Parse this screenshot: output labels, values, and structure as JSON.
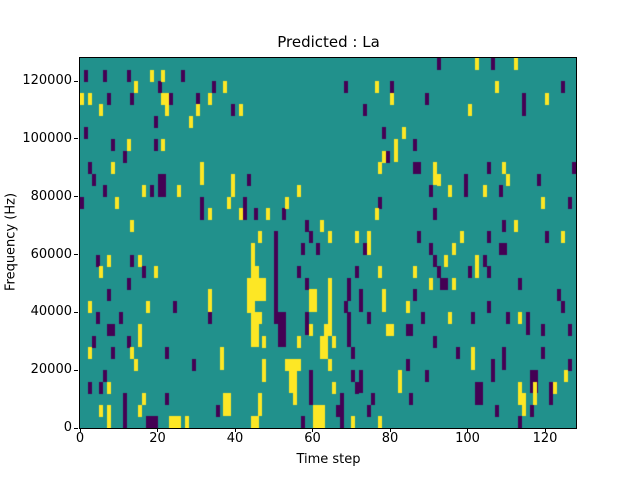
{
  "chart_data": {
    "type": "heatmap",
    "title": "Predicted : La",
    "xlabel": "Time step",
    "ylabel": "Frequency (Hz)",
    "x_range": [
      0,
      128
    ],
    "y_range": [
      0,
      128000
    ],
    "x_ticks": [
      0,
      20,
      40,
      60,
      80,
      100,
      120
    ],
    "y_ticks": [
      0,
      20000,
      40000,
      60000,
      80000,
      100000,
      120000
    ],
    "grid": {
      "cols": 128,
      "rows": 32
    },
    "legend": "none",
    "colors": {
      "mid": "#21918c",
      "low": "#440154",
      "high": "#fde725",
      "axis": "#000000",
      "figure_bg": "#ffffff"
    },
    "cells_low": [
      [
        92,
        0
      ],
      [
        106,
        0
      ],
      [
        1,
        1
      ],
      [
        6,
        1
      ],
      [
        12,
        1
      ],
      [
        26,
        1
      ],
      [
        20,
        2
      ],
      [
        34,
        2
      ],
      [
        68,
        2
      ],
      [
        80,
        2
      ],
      [
        124,
        2
      ],
      [
        7,
        3
      ],
      [
        13,
        3
      ],
      [
        23,
        3
      ],
      [
        30,
        3
      ],
      [
        89,
        3
      ],
      [
        114,
        3,
        1,
        2
      ],
      [
        39,
        4
      ],
      [
        73,
        4
      ],
      [
        19,
        5
      ],
      [
        1,
        6
      ],
      [
        78,
        6
      ],
      [
        8,
        7
      ],
      [
        19,
        7
      ],
      [
        86,
        7
      ],
      [
        11,
        8
      ],
      [
        79,
        8
      ],
      [
        2,
        9
      ],
      [
        86,
        9,
        2,
        1
      ],
      [
        105,
        9
      ],
      [
        127,
        9
      ],
      [
        3,
        10
      ],
      [
        43,
        10
      ],
      [
        99,
        10,
        1,
        2
      ],
      [
        118,
        10
      ],
      [
        20,
        10,
        2,
        2
      ],
      [
        6,
        11
      ],
      [
        18,
        11
      ],
      [
        90,
        11
      ],
      [
        108,
        11
      ],
      [
        0,
        12
      ],
      [
        31,
        12,
        1,
        2
      ],
      [
        42,
        12,
        1,
        2
      ],
      [
        77,
        12
      ],
      [
        126,
        12
      ],
      [
        45,
        13
      ],
      [
        52,
        13
      ],
      [
        91,
        13
      ],
      [
        58,
        14
      ],
      [
        109,
        14
      ],
      [
        50,
        15
      ],
      [
        59,
        15
      ],
      [
        87,
        15
      ],
      [
        105,
        15
      ],
      [
        120,
        15
      ],
      [
        50,
        16,
        1,
        7
      ],
      [
        57,
        16
      ],
      [
        61,
        16
      ],
      [
        73,
        16
      ],
      [
        90,
        16
      ],
      [
        108,
        16,
        2,
        1
      ],
      [
        4,
        17
      ],
      [
        13,
        17
      ],
      [
        91,
        17
      ],
      [
        104,
        17
      ],
      [
        16,
        18
      ],
      [
        56,
        18
      ],
      [
        71,
        18
      ],
      [
        92,
        18
      ],
      [
        100,
        18
      ],
      [
        105,
        18
      ],
      [
        12,
        19
      ],
      [
        58,
        19
      ],
      [
        69,
        19,
        1,
        2
      ],
      [
        93,
        19
      ],
      [
        94,
        19
      ],
      [
        113,
        19
      ],
      [
        7,
        20
      ],
      [
        72,
        20,
        1,
        2
      ],
      [
        86,
        20
      ],
      [
        123,
        20
      ],
      [
        24,
        21
      ],
      [
        68,
        21
      ],
      [
        105,
        21
      ],
      [
        124,
        21
      ],
      [
        4,
        22
      ],
      [
        10,
        22
      ],
      [
        33,
        22
      ],
      [
        51,
        22,
        2,
        3
      ],
      [
        58,
        22,
        1,
        2
      ],
      [
        69,
        22,
        1,
        3
      ],
      [
        74,
        22
      ],
      [
        88,
        22
      ],
      [
        101,
        22
      ],
      [
        110,
        22
      ],
      [
        115,
        22,
        1,
        2
      ],
      [
        7,
        23,
        2,
        1
      ],
      [
        84,
        23
      ],
      [
        85,
        23
      ],
      [
        119,
        23
      ],
      [
        126,
        23
      ],
      [
        3,
        24
      ],
      [
        12,
        24
      ],
      [
        91,
        24
      ],
      [
        8,
        25
      ],
      [
        22,
        25
      ],
      [
        70,
        25
      ],
      [
        97,
        25
      ],
      [
        109,
        25,
        1,
        2
      ],
      [
        119,
        25
      ],
      [
        29,
        26
      ],
      [
        84,
        26
      ],
      [
        106,
        26,
        1,
        2
      ],
      [
        126,
        26
      ],
      [
        6,
        27
      ],
      [
        59,
        27,
        1,
        3
      ],
      [
        70,
        27
      ],
      [
        72,
        27,
        1,
        2
      ],
      [
        89,
        27
      ],
      [
        116,
        27,
        2,
        2
      ],
      [
        2,
        28
      ],
      [
        5,
        28
      ],
      [
        71,
        28
      ],
      [
        102,
        28,
        2,
        2
      ],
      [
        121,
        28,
        1,
        2
      ],
      [
        11,
        29,
        1,
        2
      ],
      [
        22,
        29
      ],
      [
        67,
        29,
        1,
        2
      ],
      [
        75,
        29
      ],
      [
        85,
        29
      ],
      [
        35,
        30
      ],
      [
        66,
        30,
        2,
        1
      ],
      [
        74,
        30
      ],
      [
        107,
        30
      ],
      [
        116,
        30
      ],
      [
        11,
        31
      ],
      [
        17,
        31,
        3,
        1
      ],
      [
        57,
        31
      ],
      [
        67,
        31
      ],
      [
        113,
        31
      ]
    ],
    "cells_high": [
      [
        102,
        0
      ],
      [
        112,
        0
      ],
      [
        18,
        1
      ],
      [
        21,
        1
      ],
      [
        14,
        2
      ],
      [
        37,
        2
      ],
      [
        76,
        2
      ],
      [
        107,
        2
      ],
      [
        0,
        3
      ],
      [
        2,
        3
      ],
      [
        21,
        3
      ],
      [
        22,
        3,
        1,
        2
      ],
      [
        33,
        3
      ],
      [
        80,
        3
      ],
      [
        120,
        3
      ],
      [
        5,
        4
      ],
      [
        30,
        4
      ],
      [
        41,
        4
      ],
      [
        100,
        4
      ],
      [
        28,
        5
      ],
      [
        83,
        6
      ],
      [
        12,
        7
      ],
      [
        21,
        7
      ],
      [
        81,
        7,
        1,
        2
      ],
      [
        78,
        8
      ],
      [
        8,
        9
      ],
      [
        31,
        9,
        1,
        2
      ],
      [
        77,
        9
      ],
      [
        91,
        9,
        1,
        2
      ],
      [
        109,
        9
      ],
      [
        39,
        10
      ],
      [
        92,
        10
      ],
      [
        110,
        10
      ],
      [
        16,
        11
      ],
      [
        25,
        11
      ],
      [
        39,
        11
      ],
      [
        56,
        11
      ],
      [
        95,
        11
      ],
      [
        104,
        11
      ],
      [
        9,
        12
      ],
      [
        38,
        12
      ],
      [
        53,
        12
      ],
      [
        119,
        12
      ],
      [
        33,
        13
      ],
      [
        41,
        13
      ],
      [
        48,
        13
      ],
      [
        76,
        13
      ],
      [
        13,
        14
      ],
      [
        62,
        14
      ],
      [
        112,
        14
      ],
      [
        46,
        15
      ],
      [
        64,
        15
      ],
      [
        71,
        15
      ],
      [
        74,
        15
      ],
      [
        98,
        15
      ],
      [
        124,
        15
      ],
      [
        44,
        16
      ],
      [
        74,
        16
      ],
      [
        96,
        16
      ],
      [
        7,
        17
      ],
      [
        15,
        17
      ],
      [
        44,
        17
      ],
      [
        94,
        17
      ],
      [
        102,
        17,
        1,
        2
      ],
      [
        5,
        18
      ],
      [
        19,
        18
      ],
      [
        44,
        18,
        2,
        1
      ],
      [
        77,
        18
      ],
      [
        86,
        18
      ],
      [
        43,
        19,
        2,
        3
      ],
      [
        45,
        19,
        2,
        2
      ],
      [
        47,
        19,
        1,
        2
      ],
      [
        64,
        19,
        1,
        3
      ],
      [
        90,
        19
      ],
      [
        96,
        19
      ],
      [
        33,
        20,
        1,
        2
      ],
      [
        59,
        20,
        2,
        2
      ],
      [
        78,
        20,
        1,
        2
      ],
      [
        2,
        21
      ],
      [
        17,
        21
      ],
      [
        84,
        21
      ],
      [
        44,
        22,
        2,
        3
      ],
      [
        46,
        22
      ],
      [
        64,
        22
      ],
      [
        95,
        22
      ],
      [
        113,
        22
      ],
      [
        15,
        23,
        1,
        2
      ],
      [
        59,
        23
      ],
      [
        63,
        23,
        2,
        1
      ],
      [
        79,
        23,
        2,
        1
      ],
      [
        47,
        24
      ],
      [
        56,
        24
      ],
      [
        62,
        24,
        2,
        2
      ],
      [
        65,
        24
      ],
      [
        2,
        25
      ],
      [
        13,
        25
      ],
      [
        36,
        25,
        1,
        2
      ],
      [
        101,
        25,
        1,
        2
      ],
      [
        14,
        26
      ],
      [
        47,
        26,
        1,
        2
      ],
      [
        53,
        26,
        4,
        1
      ],
      [
        64,
        26
      ],
      [
        54,
        27,
        2,
        2
      ],
      [
        82,
        27,
        1,
        2
      ],
      [
        125,
        27
      ],
      [
        7,
        28
      ],
      [
        55,
        28,
        1,
        2
      ],
      [
        65,
        28
      ],
      [
        113,
        28,
        1,
        2
      ],
      [
        117,
        28
      ],
      [
        122,
        28
      ],
      [
        16,
        29
      ],
      [
        37,
        29,
        2,
        2
      ],
      [
        46,
        29,
        1,
        2
      ],
      [
        114,
        29,
        1,
        2
      ],
      [
        117,
        29
      ],
      [
        5,
        30
      ],
      [
        7,
        30,
        1,
        2
      ],
      [
        15,
        30
      ],
      [
        60,
        30,
        3,
        2
      ],
      [
        23,
        31,
        3,
        1
      ],
      [
        25,
        31
      ],
      [
        27,
        31
      ],
      [
        44,
        31,
        2,
        1
      ],
      [
        70,
        31
      ],
      [
        77,
        31
      ]
    ]
  }
}
